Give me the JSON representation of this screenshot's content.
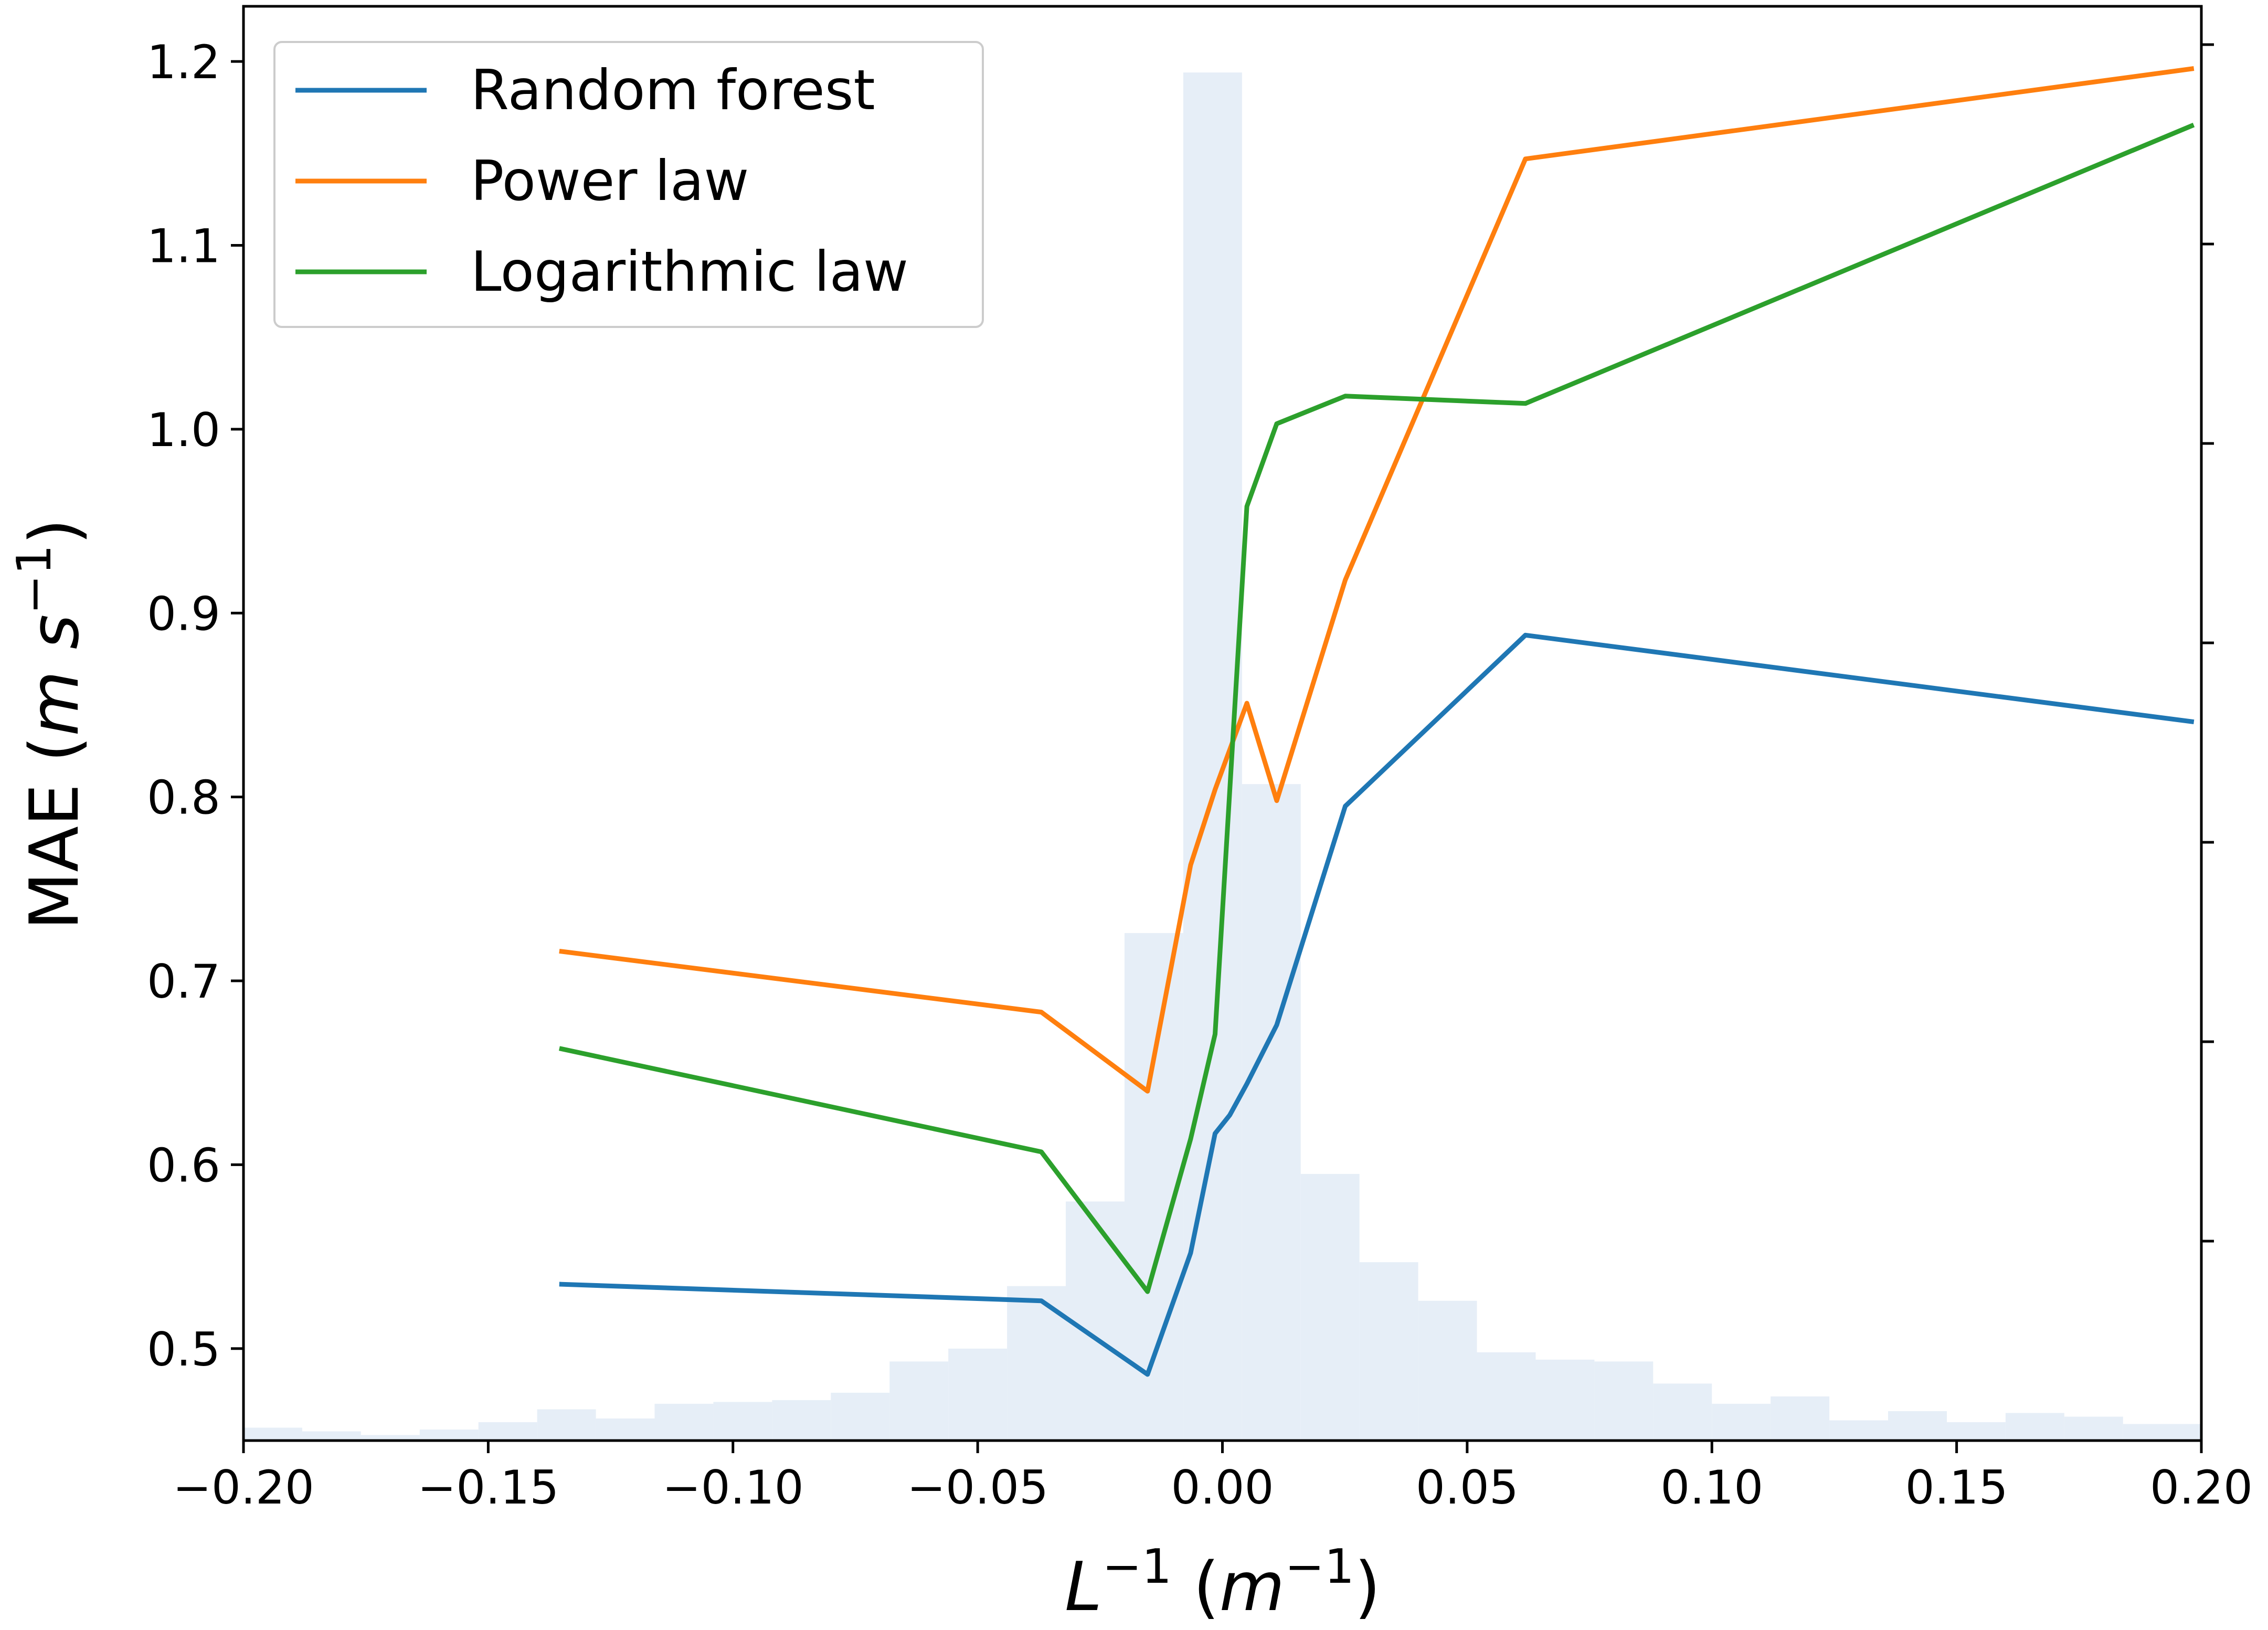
{
  "chart_data": {
    "type": "line",
    "xlabel": "L^{-1} (m^{-1})",
    "ylabel": "MAE (m s^{-1})",
    "xlim": [
      -0.2,
      0.2
    ],
    "ylim": [
      0.45,
      1.23
    ],
    "x_ticks": [
      -0.2,
      -0.15,
      -0.1,
      -0.05,
      0.0,
      0.05,
      0.1,
      0.15,
      0.2
    ],
    "x_tick_labels": [
      "−0.20",
      "−0.15",
      "−0.10",
      "−0.05",
      "0.00",
      "0.05",
      "0.10",
      "0.15",
      "0.20"
    ],
    "y_ticks": [
      0.5,
      0.6,
      0.7,
      0.8,
      0.9,
      1.0,
      1.1,
      1.2
    ],
    "y_tick_labels": [
      "0.5",
      "0.6",
      "0.7",
      "0.8",
      "0.9",
      "1.0",
      "1.1",
      "1.2"
    ],
    "legend_position": "top-left",
    "grid": false,
    "series": [
      {
        "name": "Random forest",
        "color": "#1f77b4",
        "x": [
          -0.135,
          -0.037,
          -0.0153,
          -0.0065,
          -0.0015,
          0.0015,
          0.005,
          0.0111,
          0.0251,
          0.0619,
          0.198
        ],
        "y": [
          0.535,
          0.526,
          0.486,
          0.552,
          0.617,
          0.627,
          0.644,
          0.676,
          0.795,
          0.888,
          0.841
        ]
      },
      {
        "name": "Power law",
        "color": "#ff7f0e",
        "x": [
          -0.135,
          -0.037,
          -0.0153,
          -0.0065,
          -0.0015,
          0.005,
          0.0111,
          0.0251,
          0.0619,
          0.198
        ],
        "y": [
          0.716,
          0.683,
          0.64,
          0.763,
          0.804,
          0.851,
          0.798,
          0.918,
          1.147,
          1.196
        ]
      },
      {
        "name": "Logarithmic law",
        "color": "#2ca02c",
        "x": [
          -0.135,
          -0.037,
          -0.0153,
          -0.0065,
          -0.0015,
          0.005,
          0.0111,
          0.0251,
          0.0619,
          0.198
        ],
        "y": [
          0.663,
          0.607,
          0.531,
          0.614,
          0.671,
          0.958,
          1.003,
          1.018,
          1.014,
          1.165
        ]
      }
    ],
    "histogram": {
      "color": "#e6eef7",
      "bin_edges": [
        -0.2,
        -0.188,
        -0.176,
        -0.164,
        -0.152,
        -0.14,
        -0.128,
        -0.116,
        -0.104,
        -0.092,
        -0.08,
        -0.068,
        -0.056,
        -0.044,
        -0.032,
        -0.02,
        -0.008,
        0.004,
        0.016,
        0.028,
        0.04,
        0.052,
        0.064,
        0.076,
        0.088,
        0.1,
        0.112,
        0.124,
        0.136,
        0.148,
        0.16,
        0.172,
        0.184,
        0.2
      ],
      "y_top": [
        0.457,
        0.455,
        0.453,
        0.456,
        0.46,
        0.467,
        0.462,
        0.47,
        0.471,
        0.472,
        0.476,
        0.493,
        0.5,
        0.534,
        0.58,
        0.726,
        1.194,
        0.807,
        0.595,
        0.547,
        0.526,
        0.498,
        0.494,
        0.493,
        0.481,
        0.47,
        0.474,
        0.461,
        0.466,
        0.46,
        0.465,
        0.463,
        0.459
      ]
    }
  }
}
